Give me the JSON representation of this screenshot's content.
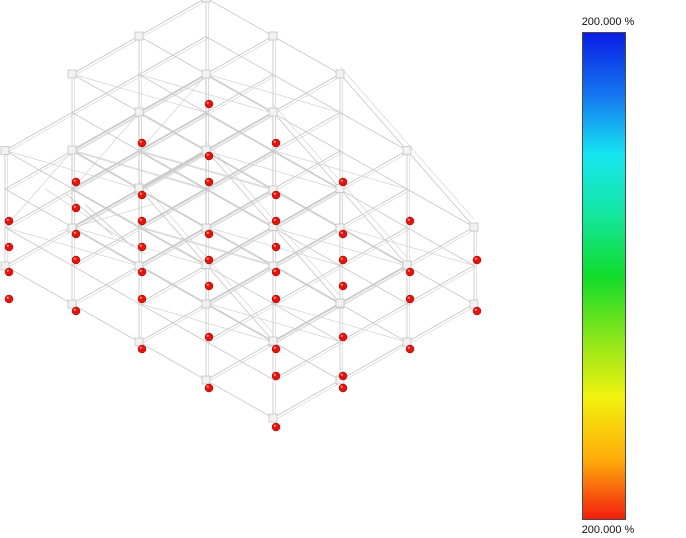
{
  "legend": {
    "max_label": "200.000 %",
    "min_label": "200.000 %",
    "gradient_colors": [
      "#0a1ee6",
      "#1478f0",
      "#16e6f2",
      "#14e69a",
      "#10dc2a",
      "#8ce61a",
      "#f2f20e",
      "#ffaa0a",
      "#f21e0e"
    ]
  },
  "model": {
    "frame_color": "#c4c4c4",
    "node_color": "#e3140e",
    "node_count": 60
  }
}
